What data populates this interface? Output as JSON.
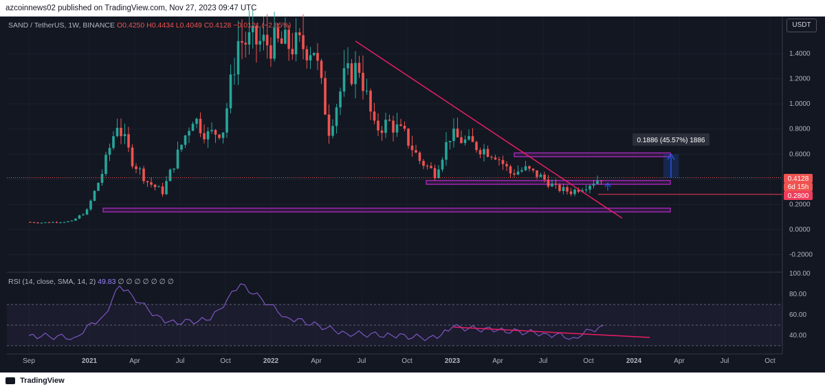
{
  "header": {
    "publisher_line": "azcoinnews02 published on TradingView.com, Nov 27, 2023 09:47 UTC"
  },
  "legend": {
    "symbol": "SAND / TetherUS, 1W, BINANCE",
    "open": "O0.4250",
    "high": "H0.4434",
    "low": "L0.4049",
    "close": "C0.4128",
    "change": "−0.0121 (−2.85%)"
  },
  "currency_button": "USDT",
  "rsi_legend": {
    "label": "RSI (14, close, SMA, 14, 2)",
    "value": "49.83",
    "placeholders": "∅ ∅ ∅ ∅ ∅ ∅ ∅"
  },
  "measure_label": "0.1886 (45.57%) 1886",
  "price_tags": {
    "last": "0.4128",
    "countdown": "6d 15h",
    "level": "0.2800"
  },
  "footer": {
    "brand": "TradingView"
  },
  "colors": {
    "up": "#26a69a",
    "down": "#ef5350",
    "zone": "#9c27b0",
    "trendline": "#e91e63",
    "rsi": "#7e57c2"
  },
  "chart_data": [
    {
      "type": "candlestick",
      "title": "SAND / TetherUS, 1W, BINANCE",
      "xlabel": "",
      "ylabel": "USDT",
      "ylim": [
        -0.25,
        1.65
      ],
      "y_ticks": [
        "1.4000",
        "1.2000",
        "1.0000",
        "0.8000",
        "0.6000",
        "0.4000",
        "0.2000",
        "0.0000",
        "-0.2000"
      ],
      "x_ticks": [
        "Sep",
        "2021",
        "Apr",
        "Jul",
        "Oct",
        "2022",
        "Apr",
        "Jul",
        "Oct",
        "2023",
        "Apr",
        "Jul",
        "Oct",
        "2024",
        "Apr",
        "Jul",
        "Oct"
      ],
      "x": [
        "2020-09",
        "2020-10",
        "2020-11",
        "2020-12",
        "2021-01",
        "2021-02",
        "2021-03",
        "2021-04",
        "2021-05",
        "2021-06",
        "2021-07",
        "2021-08",
        "2021-09",
        "2021-10",
        "2021-11",
        "2022-04",
        "2022-05",
        "2022-06",
        "2022-07",
        "2022-08",
        "2022-09",
        "2022-10",
        "2022-11",
        "2022-12",
        "2023-01",
        "2023-02",
        "2023-03",
        "2023-04",
        "2023-05",
        "2023-06",
        "2023-07",
        "2023-08",
        "2023-09",
        "2023-10",
        "2023-11"
      ],
      "close": [
        0.06,
        0.055,
        0.06,
        0.065,
        0.15,
        0.45,
        0.85,
        0.55,
        0.38,
        0.3,
        0.6,
        0.9,
        0.75,
        0.8,
        1.5,
        1.45,
        0.8,
        1.2,
        1.3,
        0.8,
        0.85,
        0.75,
        0.55,
        0.45,
        0.75,
        0.7,
        0.65,
        0.6,
        0.45,
        0.48,
        0.42,
        0.33,
        0.3,
        0.35,
        0.4128
      ],
      "annotations": {
        "support_zone_low": [
          0.14,
          0.17
        ],
        "support_zone_mid": [
          0.36,
          0.39
        ],
        "resistance_zone": [
          0.58,
          0.61
        ],
        "level_line": 0.28,
        "last_price": 0.4128
      }
    },
    {
      "type": "line",
      "title": "RSI (14, close, SMA, 14, 2)",
      "ylim": [
        25,
        100
      ],
      "y_ticks": [
        "100.00",
        "80.00",
        "60.00",
        "40.00"
      ],
      "x": [
        "2020-09",
        "2020-12",
        "2021-02",
        "2021-03",
        "2021-06",
        "2021-09",
        "2021-11",
        "2022-02",
        "2022-06",
        "2022-09",
        "2022-12",
        "2023-01",
        "2023-04",
        "2023-07",
        "2023-09",
        "2023-11"
      ],
      "values": [
        40,
        38,
        60,
        88,
        52,
        55,
        90,
        58,
        42,
        40,
        37,
        48,
        45,
        42,
        38,
        49.83
      ]
    }
  ]
}
